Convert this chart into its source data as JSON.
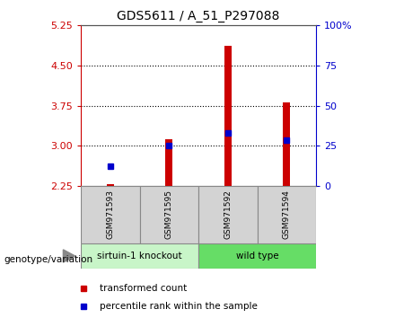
{
  "title": "GDS5611 / A_51_P297088",
  "samples": [
    "GSM971593",
    "GSM971595",
    "GSM971592",
    "GSM971594"
  ],
  "group_colors": {
    "sirtuin-1 knockout": "#c8f5c8",
    "wild type": "#66dd66"
  },
  "group_spans": [
    {
      "name": "sirtuin-1 knockout",
      "start": 0,
      "end": 1,
      "color": "#c8f5c8"
    },
    {
      "name": "wild type",
      "start": 2,
      "end": 3,
      "color": "#66dd66"
    }
  ],
  "bar_baseline": 2.25,
  "bar_tops": [
    2.28,
    3.12,
    4.87,
    3.82
  ],
  "percentile_values": [
    2.62,
    3.0,
    3.25,
    3.1
  ],
  "ylim_left": [
    2.25,
    5.25
  ],
  "yticks_left": [
    2.25,
    3.0,
    3.75,
    4.5,
    5.25
  ],
  "ylim_right": [
    0,
    100
  ],
  "yticks_right": [
    0,
    25,
    50,
    75,
    100
  ],
  "ytick_right_labels": [
    "0",
    "25",
    "50",
    "75",
    "100%"
  ],
  "bar_color": "#cc0000",
  "percentile_color": "#0000cc",
  "left_axis_color": "#cc0000",
  "right_axis_color": "#0000cc",
  "group_label": "genotype/variation",
  "legend_bar_label": "transformed count",
  "legend_pct_label": "percentile rank within the sample",
  "bar_width": 0.12,
  "sample_bg_color": "#d3d3d3",
  "plot_bg_color": "#ffffff",
  "grid_dotted_at": [
    3.0,
    3.75,
    4.5
  ]
}
